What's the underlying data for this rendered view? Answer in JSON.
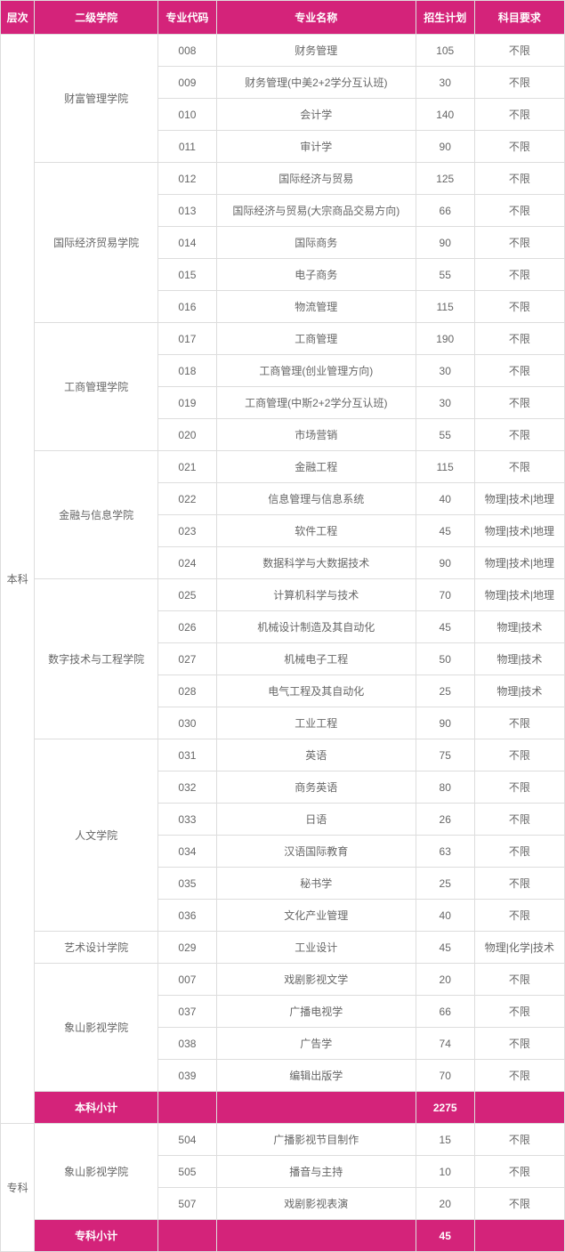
{
  "headers": [
    "层次",
    "二级学院",
    "专业代码",
    "专业名称",
    "招生计划",
    "科目要求"
  ],
  "levels": [
    {
      "name": "本科",
      "colleges": [
        {
          "name": "财富管理学院",
          "majors": [
            {
              "code": "008",
              "name": "财务管理",
              "plan": "105",
              "req": "不限"
            },
            {
              "code": "009",
              "name": "财务管理(中美2+2学分互认班)",
              "plan": "30",
              "req": "不限"
            },
            {
              "code": "010",
              "name": "会计学",
              "plan": "140",
              "req": "不限"
            },
            {
              "code": "011",
              "name": "审计学",
              "plan": "90",
              "req": "不限"
            }
          ]
        },
        {
          "name": "国际经济贸易学院",
          "majors": [
            {
              "code": "012",
              "name": "国际经济与贸易",
              "plan": "125",
              "req": "不限"
            },
            {
              "code": "013",
              "name": "国际经济与贸易(大宗商品交易方向)",
              "plan": "66",
              "req": "不限"
            },
            {
              "code": "014",
              "name": "国际商务",
              "plan": "90",
              "req": "不限"
            },
            {
              "code": "015",
              "name": "电子商务",
              "plan": "55",
              "req": "不限"
            },
            {
              "code": "016",
              "name": "物流管理",
              "plan": "115",
              "req": "不限"
            }
          ]
        },
        {
          "name": "工商管理学院",
          "majors": [
            {
              "code": "017",
              "name": "工商管理",
              "plan": "190",
              "req": "不限"
            },
            {
              "code": "018",
              "name": "工商管理(创业管理方向)",
              "plan": "30",
              "req": "不限"
            },
            {
              "code": "019",
              "name": "工商管理(中斯2+2学分互认班)",
              "plan": "30",
              "req": "不限"
            },
            {
              "code": "020",
              "name": "市场营销",
              "plan": "55",
              "req": "不限"
            }
          ]
        },
        {
          "name": "金融与信息学院",
          "majors": [
            {
              "code": "021",
              "name": "金融工程",
              "plan": "115",
              "req": "不限"
            },
            {
              "code": "022",
              "name": "信息管理与信息系统",
              "plan": "40",
              "req": "物理|技术|地理"
            },
            {
              "code": "023",
              "name": "软件工程",
              "plan": "45",
              "req": "物理|技术|地理"
            },
            {
              "code": "024",
              "name": "数据科学与大数据技术",
              "plan": "90",
              "req": "物理|技术|地理"
            }
          ]
        },
        {
          "name": "数字技术与工程学院",
          "majors": [
            {
              "code": "025",
              "name": "计算机科学与技术",
              "plan": "70",
              "req": "物理|技术|地理"
            },
            {
              "code": "026",
              "name": "机械设计制造及其自动化",
              "plan": "45",
              "req": "物理|技术"
            },
            {
              "code": "027",
              "name": "机械电子工程",
              "plan": "50",
              "req": "物理|技术"
            },
            {
              "code": "028",
              "name": "电气工程及其自动化",
              "plan": "25",
              "req": "物理|技术"
            },
            {
              "code": "030",
              "name": "工业工程",
              "plan": "90",
              "req": "不限"
            }
          ]
        },
        {
          "name": "人文学院",
          "majors": [
            {
              "code": "031",
              "name": "英语",
              "plan": "75",
              "req": "不限"
            },
            {
              "code": "032",
              "name": "商务英语",
              "plan": "80",
              "req": "不限"
            },
            {
              "code": "033",
              "name": "日语",
              "plan": "26",
              "req": "不限"
            },
            {
              "code": "034",
              "name": "汉语国际教育",
              "plan": "63",
              "req": "不限"
            },
            {
              "code": "035",
              "name": "秘书学",
              "plan": "25",
              "req": "不限"
            },
            {
              "code": "036",
              "name": "文化产业管理",
              "plan": "40",
              "req": "不限"
            }
          ]
        },
        {
          "name": "艺术设计学院",
          "majors": [
            {
              "code": "029",
              "name": "工业设计",
              "plan": "45",
              "req": "物理|化学|技术"
            }
          ]
        },
        {
          "name": "象山影视学院",
          "majors": [
            {
              "code": "007",
              "name": "戏剧影视文学",
              "plan": "20",
              "req": "不限"
            },
            {
              "code": "037",
              "name": "广播电视学",
              "plan": "66",
              "req": "不限"
            },
            {
              "code": "038",
              "name": "广告学",
              "plan": "74",
              "req": "不限"
            },
            {
              "code": "039",
              "name": "编辑出版学",
              "plan": "70",
              "req": "不限"
            }
          ]
        }
      ],
      "subtotal": {
        "label": "本科小计",
        "plan": "2275"
      }
    },
    {
      "name": "专科",
      "colleges": [
        {
          "name": "象山影视学院",
          "majors": [
            {
              "code": "504",
              "name": "广播影视节目制作",
              "plan": "15",
              "req": "不限"
            },
            {
              "code": "505",
              "name": "播音与主持",
              "plan": "10",
              "req": "不限"
            },
            {
              "code": "507",
              "name": "戏剧影视表演",
              "plan": "20",
              "req": "不限"
            }
          ]
        }
      ],
      "subtotal": {
        "label": "专科小计",
        "plan": "45"
      }
    }
  ]
}
